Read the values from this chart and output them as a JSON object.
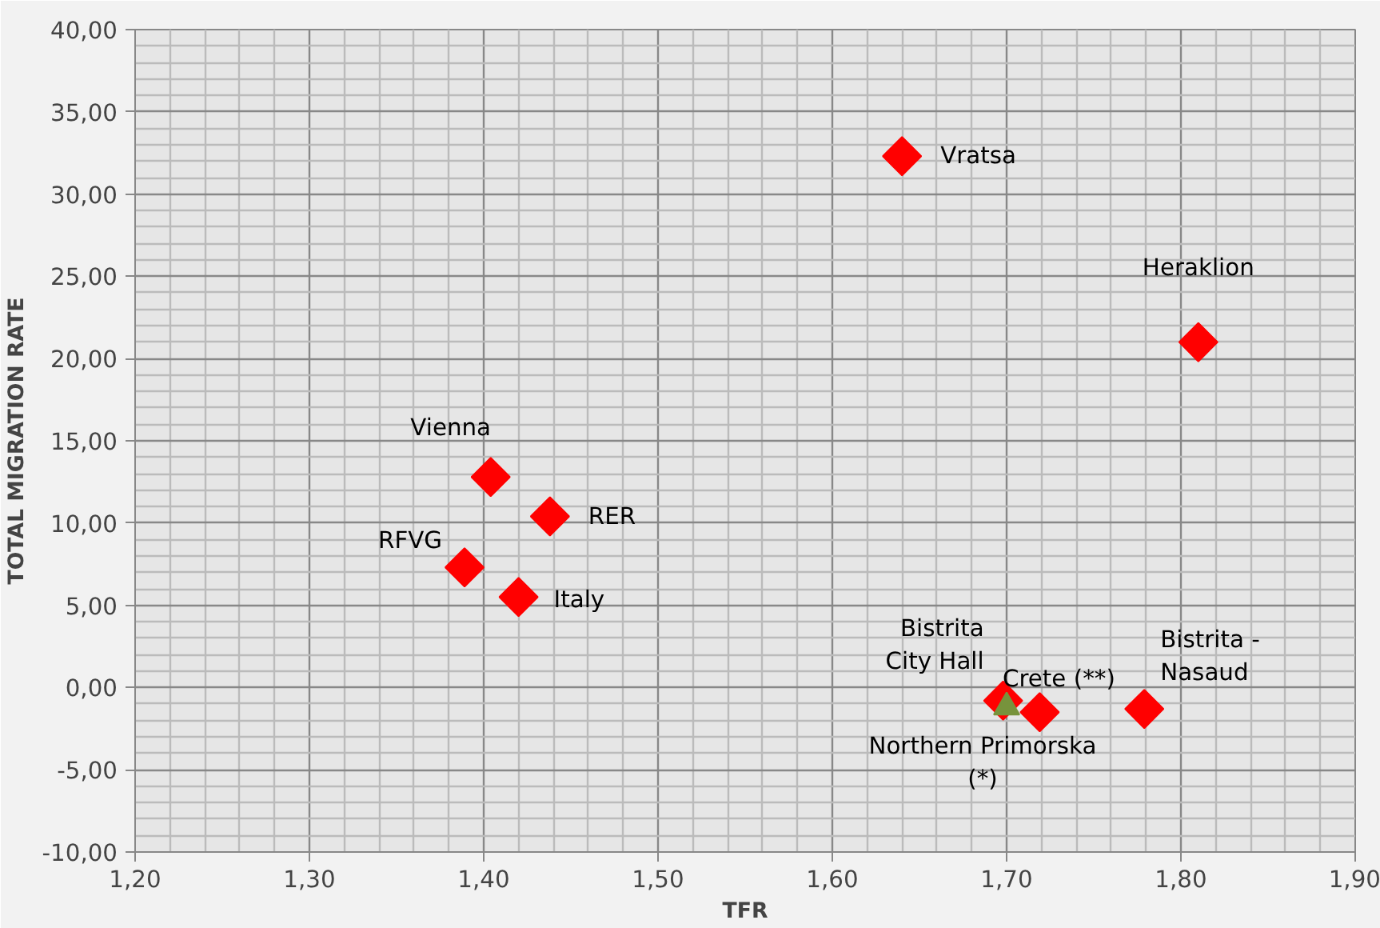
{
  "chart_data": {
    "type": "scatter",
    "xlabel": "TFR",
    "ylabel": "TOTAL MIGRATION RATE",
    "xlim": [
      1.2,
      1.9
    ],
    "ylim": [
      -10,
      40
    ],
    "xticks": [
      {
        "value": 1.2,
        "label": "1,20"
      },
      {
        "value": 1.3,
        "label": "1,30"
      },
      {
        "value": 1.4,
        "label": "1,40"
      },
      {
        "value": 1.5,
        "label": "1,50"
      },
      {
        "value": 1.6,
        "label": "1,60"
      },
      {
        "value": 1.7,
        "label": "1,70"
      },
      {
        "value": 1.8,
        "label": "1,80"
      },
      {
        "value": 1.9,
        "label": "1,90"
      }
    ],
    "yticks": [
      {
        "value": -10,
        "label": "-10,00"
      },
      {
        "value": -5,
        "label": "-5,00"
      },
      {
        "value": 0,
        "label": "0,00"
      },
      {
        "value": 5,
        "label": "5,00"
      },
      {
        "value": 10,
        "label": "10,00"
      },
      {
        "value": 15,
        "label": "15,00"
      },
      {
        "value": 20,
        "label": "20,00"
      },
      {
        "value": 25,
        "label": "25,00"
      },
      {
        "value": 30,
        "label": "30,00"
      },
      {
        "value": 35,
        "label": "35,00"
      },
      {
        "value": 40,
        "label": "40,00"
      }
    ],
    "grid": true,
    "series": [
      {
        "marker": "diamond",
        "color": "#ff0000",
        "x": [
          1.64,
          1.81,
          1.404,
          1.438,
          1.389,
          1.42,
          1.719,
          1.779
        ],
        "values": [
          32.3,
          21.0,
          12.8,
          10.4,
          7.3,
          5.5,
          -1.5,
          -1.3
        ]
      },
      {
        "marker": "diamond",
        "color": "#ff0000",
        "x": [
          1.698
        ],
        "values": [
          -0.8
        ]
      },
      {
        "marker": "triangle",
        "color": "#77933c",
        "x": [
          1.7
        ],
        "values": [
          -1.2
        ]
      }
    ],
    "annotations": [
      {
        "text": "Vratsa",
        "x": 1.64,
        "y": 32.3
      },
      {
        "text": "Heraklion",
        "x": 1.81,
        "y": 21.0
      },
      {
        "text": "Vienna",
        "x": 1.404,
        "y": 12.8
      },
      {
        "text": "RER",
        "x": 1.438,
        "y": 10.4
      },
      {
        "text": "RFVG",
        "x": 1.389,
        "y": 7.3
      },
      {
        "text": "Italy",
        "x": 1.42,
        "y": 5.5
      },
      {
        "text": "Bistrita\nCity Hall",
        "x": 1.698,
        "y": -0.8
      },
      {
        "text": "Northern Primorska\n(*)",
        "x": 1.7,
        "y": -1.2
      },
      {
        "text": "Crete (**)",
        "x": 1.719,
        "y": -1.5
      },
      {
        "text": "Bistrita -\nNasaud",
        "x": 1.779,
        "y": -1.3
      }
    ]
  }
}
